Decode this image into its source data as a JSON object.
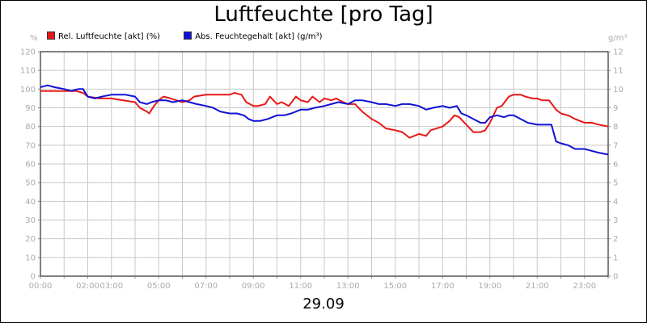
{
  "chart_data": {
    "type": "line",
    "title": "Luftfeuchte [pro Tag]",
    "xlabel": "29.09",
    "left_unit": "%",
    "right_unit": "g/m³",
    "x_ticks": [
      "00:00",
      "02:00",
      "03:00",
      "05:00",
      "07:00",
      "09:00",
      "11:00",
      "13:00",
      "15:00",
      "17:00",
      "19:00",
      "21:00",
      "23:00"
    ],
    "x_tick_hours": [
      0,
      2,
      3,
      5,
      7,
      9,
      11,
      13,
      15,
      17,
      19,
      21,
      23
    ],
    "xlim": [
      0,
      24
    ],
    "y_left_ticks": [
      "0",
      "10",
      "20",
      "30",
      "40",
      "50",
      "60",
      "70",
      "80",
      "90",
      "100",
      "110",
      "120"
    ],
    "y_right_ticks": [
      "0",
      "1",
      "2",
      "3",
      "4",
      "5",
      "6",
      "7",
      "8",
      "9",
      "10",
      "11",
      "12"
    ],
    "ylim_left": [
      0,
      120
    ],
    "ylim_right": [
      0,
      12
    ],
    "grid": true,
    "legend_position": "top-left",
    "series": [
      {
        "name": "Rel. Luftfeuchte [akt] (%)",
        "color": "#e81818",
        "axis": "left",
        "points": [
          [
            0,
            99
          ],
          [
            0.5,
            99
          ],
          [
            1,
            99
          ],
          [
            1.5,
            99
          ],
          [
            1.8,
            98
          ],
          [
            2,
            96
          ],
          [
            2.5,
            95
          ],
          [
            3,
            95
          ],
          [
            3.5,
            94
          ],
          [
            4,
            93
          ],
          [
            4.2,
            90
          ],
          [
            4.5,
            88
          ],
          [
            4.6,
            87
          ],
          [
            4.8,
            91
          ],
          [
            5,
            94
          ],
          [
            5.2,
            96
          ],
          [
            5.5,
            95
          ],
          [
            6,
            93
          ],
          [
            6.3,
            94
          ],
          [
            6.5,
            96
          ],
          [
            7,
            97
          ],
          [
            7.5,
            97
          ],
          [
            8,
            97
          ],
          [
            8.2,
            98
          ],
          [
            8.5,
            97
          ],
          [
            8.7,
            93
          ],
          [
            9,
            91
          ],
          [
            9.2,
            91
          ],
          [
            9.5,
            92
          ],
          [
            9.7,
            96
          ],
          [
            10,
            92
          ],
          [
            10.2,
            93
          ],
          [
            10.5,
            91
          ],
          [
            10.8,
            96
          ],
          [
            11,
            94
          ],
          [
            11.3,
            93
          ],
          [
            11.5,
            96
          ],
          [
            11.8,
            93
          ],
          [
            12,
            95
          ],
          [
            12.3,
            94
          ],
          [
            12.5,
            95
          ],
          [
            12.8,
            93
          ],
          [
            13,
            92
          ],
          [
            13.3,
            92
          ],
          [
            13.6,
            88
          ],
          [
            14,
            84
          ],
          [
            14.3,
            82
          ],
          [
            14.6,
            79
          ],
          [
            15,
            78
          ],
          [
            15.3,
            77
          ],
          [
            15.6,
            74
          ],
          [
            16,
            76
          ],
          [
            16.3,
            75
          ],
          [
            16.5,
            78
          ],
          [
            17,
            80
          ],
          [
            17.3,
            83
          ],
          [
            17.5,
            86
          ],
          [
            17.7,
            85
          ],
          [
            18,
            81
          ],
          [
            18.3,
            77
          ],
          [
            18.6,
            77
          ],
          [
            18.8,
            78
          ],
          [
            19,
            82
          ],
          [
            19.3,
            90
          ],
          [
            19.5,
            91
          ],
          [
            19.8,
            96
          ],
          [
            20,
            97
          ],
          [
            20.3,
            97
          ],
          [
            20.5,
            96
          ],
          [
            20.8,
            95
          ],
          [
            21,
            95
          ],
          [
            21.2,
            94
          ],
          [
            21.5,
            94
          ],
          [
            21.8,
            89
          ],
          [
            22,
            87
          ],
          [
            22.3,
            86
          ],
          [
            22.6,
            84
          ],
          [
            22.8,
            83
          ],
          [
            23,
            82
          ],
          [
            23.3,
            82
          ],
          [
            23.6,
            81
          ],
          [
            24,
            80
          ]
        ]
      },
      {
        "name": "Abs. Feuchtegehalt [akt] (g/m³)",
        "color": "#1010d8",
        "axis": "right",
        "points": [
          [
            0,
            10.1
          ],
          [
            0.3,
            10.2
          ],
          [
            0.6,
            10.1
          ],
          [
            1,
            10.0
          ],
          [
            1.3,
            9.9
          ],
          [
            1.6,
            10.0
          ],
          [
            1.8,
            10.0
          ],
          [
            2,
            9.6
          ],
          [
            2.3,
            9.5
          ],
          [
            2.6,
            9.6
          ],
          [
            3,
            9.7
          ],
          [
            3.3,
            9.7
          ],
          [
            3.6,
            9.7
          ],
          [
            4,
            9.6
          ],
          [
            4.2,
            9.3
          ],
          [
            4.5,
            9.2
          ],
          [
            4.7,
            9.3
          ],
          [
            5,
            9.4
          ],
          [
            5.3,
            9.4
          ],
          [
            5.6,
            9.3
          ],
          [
            6,
            9.4
          ],
          [
            6.3,
            9.3
          ],
          [
            6.6,
            9.2
          ],
          [
            7,
            9.1
          ],
          [
            7.3,
            9.0
          ],
          [
            7.6,
            8.8
          ],
          [
            8,
            8.7
          ],
          [
            8.3,
            8.7
          ],
          [
            8.6,
            8.6
          ],
          [
            8.8,
            8.4
          ],
          [
            9,
            8.3
          ],
          [
            9.3,
            8.3
          ],
          [
            9.6,
            8.4
          ],
          [
            10,
            8.6
          ],
          [
            10.3,
            8.6
          ],
          [
            10.6,
            8.7
          ],
          [
            11,
            8.9
          ],
          [
            11.3,
            8.9
          ],
          [
            11.6,
            9.0
          ],
          [
            12,
            9.1
          ],
          [
            12.3,
            9.2
          ],
          [
            12.6,
            9.3
          ],
          [
            13,
            9.2
          ],
          [
            13.3,
            9.4
          ],
          [
            13.6,
            9.4
          ],
          [
            14,
            9.3
          ],
          [
            14.3,
            9.2
          ],
          [
            14.6,
            9.2
          ],
          [
            15,
            9.1
          ],
          [
            15.3,
            9.2
          ],
          [
            15.6,
            9.2
          ],
          [
            16,
            9.1
          ],
          [
            16.3,
            8.9
          ],
          [
            16.6,
            9.0
          ],
          [
            17,
            9.1
          ],
          [
            17.3,
            9.0
          ],
          [
            17.6,
            9.1
          ],
          [
            17.8,
            8.7
          ],
          [
            18,
            8.6
          ],
          [
            18.3,
            8.4
          ],
          [
            18.6,
            8.2
          ],
          [
            18.8,
            8.2
          ],
          [
            19,
            8.5
          ],
          [
            19.3,
            8.6
          ],
          [
            19.6,
            8.5
          ],
          [
            19.8,
            8.6
          ],
          [
            20,
            8.6
          ],
          [
            20.3,
            8.4
          ],
          [
            20.6,
            8.2
          ],
          [
            21,
            8.1
          ],
          [
            21.3,
            8.1
          ],
          [
            21.6,
            8.1
          ],
          [
            21.8,
            7.2
          ],
          [
            22,
            7.1
          ],
          [
            22.3,
            7.0
          ],
          [
            22.6,
            6.8
          ],
          [
            23,
            6.8
          ],
          [
            23.3,
            6.7
          ],
          [
            23.6,
            6.6
          ],
          [
            24,
            6.5
          ]
        ]
      }
    ]
  }
}
